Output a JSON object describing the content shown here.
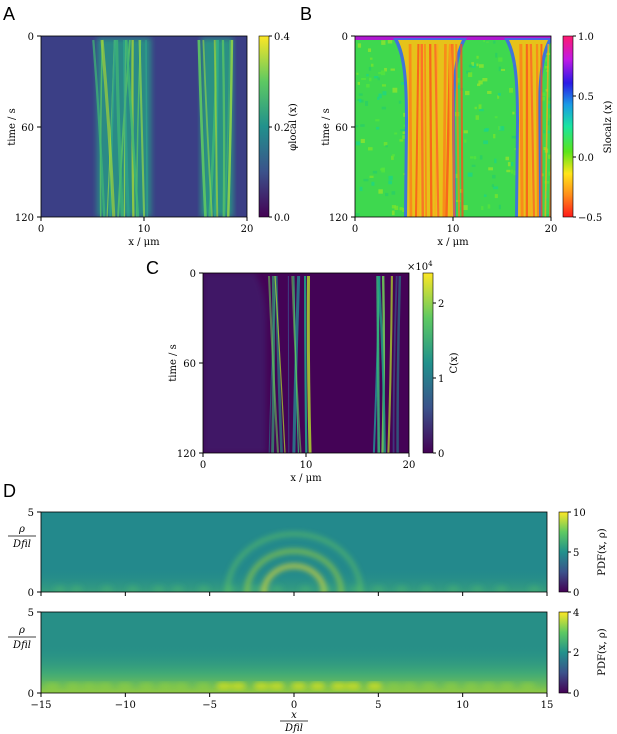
{
  "panel_labels": [
    "A",
    "B",
    "C",
    "D"
  ],
  "chart_data": [
    {
      "id": "A",
      "type": "heatmap",
      "xlabel": "x / μm",
      "ylabel": "time / s",
      "xlim": [
        0,
        20
      ],
      "ylim": [
        120,
        0
      ],
      "xticks": [
        0,
        10,
        20
      ],
      "yticks": [
        0,
        60,
        120
      ],
      "colorbar": {
        "label": "φlocal (x)",
        "ticks": [
          "0.0",
          "0.2",
          "0.4"
        ],
        "range": [
          0,
          0.4
        ],
        "colormap": "viridis"
      },
      "bands": [
        {
          "x": [
            5.5,
            10.5
          ],
          "value": 0.25
        },
        {
          "x": [
            16.5,
            19.5
          ],
          "value": 0.28
        }
      ],
      "background_value": 0.05
    },
    {
      "id": "B",
      "type": "heatmap",
      "xlabel": "x / μm",
      "ylabel": "time / s",
      "xlim": [
        0,
        20
      ],
      "ylim": [
        120,
        0
      ],
      "xticks": [
        0,
        10,
        20
      ],
      "yticks": [
        0,
        60,
        120
      ],
      "colorbar": {
        "label": "Slocalz (x)",
        "ticks": [
          "−0.5",
          "0.0",
          "0.5",
          "1.0"
        ],
        "range": [
          -0.5,
          1.0
        ],
        "colormap": "gist_rainbow"
      },
      "bands": [
        {
          "x": [
            5.5,
            10.5
          ],
          "value": -0.35
        },
        {
          "x": [
            16.5,
            19.5
          ],
          "value": -0.3
        }
      ],
      "background_value": 0.0
    },
    {
      "id": "C",
      "type": "heatmap",
      "xlabel": "x / μm",
      "ylabel": "time / s",
      "xlim": [
        0,
        20
      ],
      "ylim": [
        120,
        0
      ],
      "xticks": [
        0,
        10,
        20
      ],
      "yticks": [
        0,
        60,
        120
      ],
      "colorbar": {
        "label": "C(x)",
        "ticks": [
          "0",
          "1",
          "2"
        ],
        "range": [
          0,
          2.4
        ],
        "scale_label": "×10",
        "scale_exp": "4",
        "colormap": "viridis"
      },
      "bands": [
        {
          "x": [
            6.5,
            10
          ],
          "value": 1.4
        },
        {
          "x": [
            16.5,
            19
          ],
          "value": 1.3
        }
      ],
      "background_value": 0.05
    },
    {
      "id": "D1",
      "type": "heatmap",
      "xlabel": "",
      "ylabel": "ρ / Dfil",
      "xlim": [
        -15,
        15
      ],
      "ylim": [
        0,
        5
      ],
      "xticks": [],
      "yticks": [
        0,
        5
      ],
      "colorbar": {
        "label": "PDF(x, ρ)",
        "ticks": [
          "0",
          "5",
          "10"
        ],
        "range": [
          0,
          10
        ],
        "colormap": "viridis"
      },
      "rings_radii": [
        1.5,
        2.5,
        3.5
      ]
    },
    {
      "id": "D2",
      "type": "heatmap",
      "xlabel": "x / Dfil",
      "ylabel": "ρ / Dfil",
      "xlim": [
        -15,
        15
      ],
      "ylim": [
        0,
        5
      ],
      "xticks": [
        -15,
        -10,
        -5,
        0,
        5,
        10,
        15
      ],
      "yticks": [
        0,
        5
      ],
      "colorbar": {
        "label": "PDF(x, ρ)",
        "ticks": [
          "0",
          "2",
          "4"
        ],
        "range": [
          0,
          4
        ],
        "colormap": "viridis"
      }
    }
  ],
  "text": {
    "ax_xlabel_um": "x / μm",
    "ax_ylabel_time": "time / s",
    "cbA_label": "φlocal (x)",
    "cbB_label": "Slocalz (x)",
    "cbC_label": "C(x)",
    "cbD_label": "PDF(x, ρ)",
    "cbC_scale": "×10",
    "cbC_exp": "4",
    "ax_D_rho": "ρ",
    "ax_D_fil": "Dfil",
    "ax_D_x": "x"
  },
  "tick_labels": {
    "time": [
      "0",
      "60",
      "120"
    ],
    "x_um": [
      "0",
      "10",
      "20"
    ],
    "x_D": [
      "−15",
      "−10",
      "−5",
      "0",
      "5",
      "10",
      "15"
    ],
    "rho_D": [
      "0",
      "5"
    ]
  },
  "colors": {
    "viridis_dark": "#440154",
    "viridis_yellow": "#fde725",
    "rainbow_green": "#33e050"
  }
}
